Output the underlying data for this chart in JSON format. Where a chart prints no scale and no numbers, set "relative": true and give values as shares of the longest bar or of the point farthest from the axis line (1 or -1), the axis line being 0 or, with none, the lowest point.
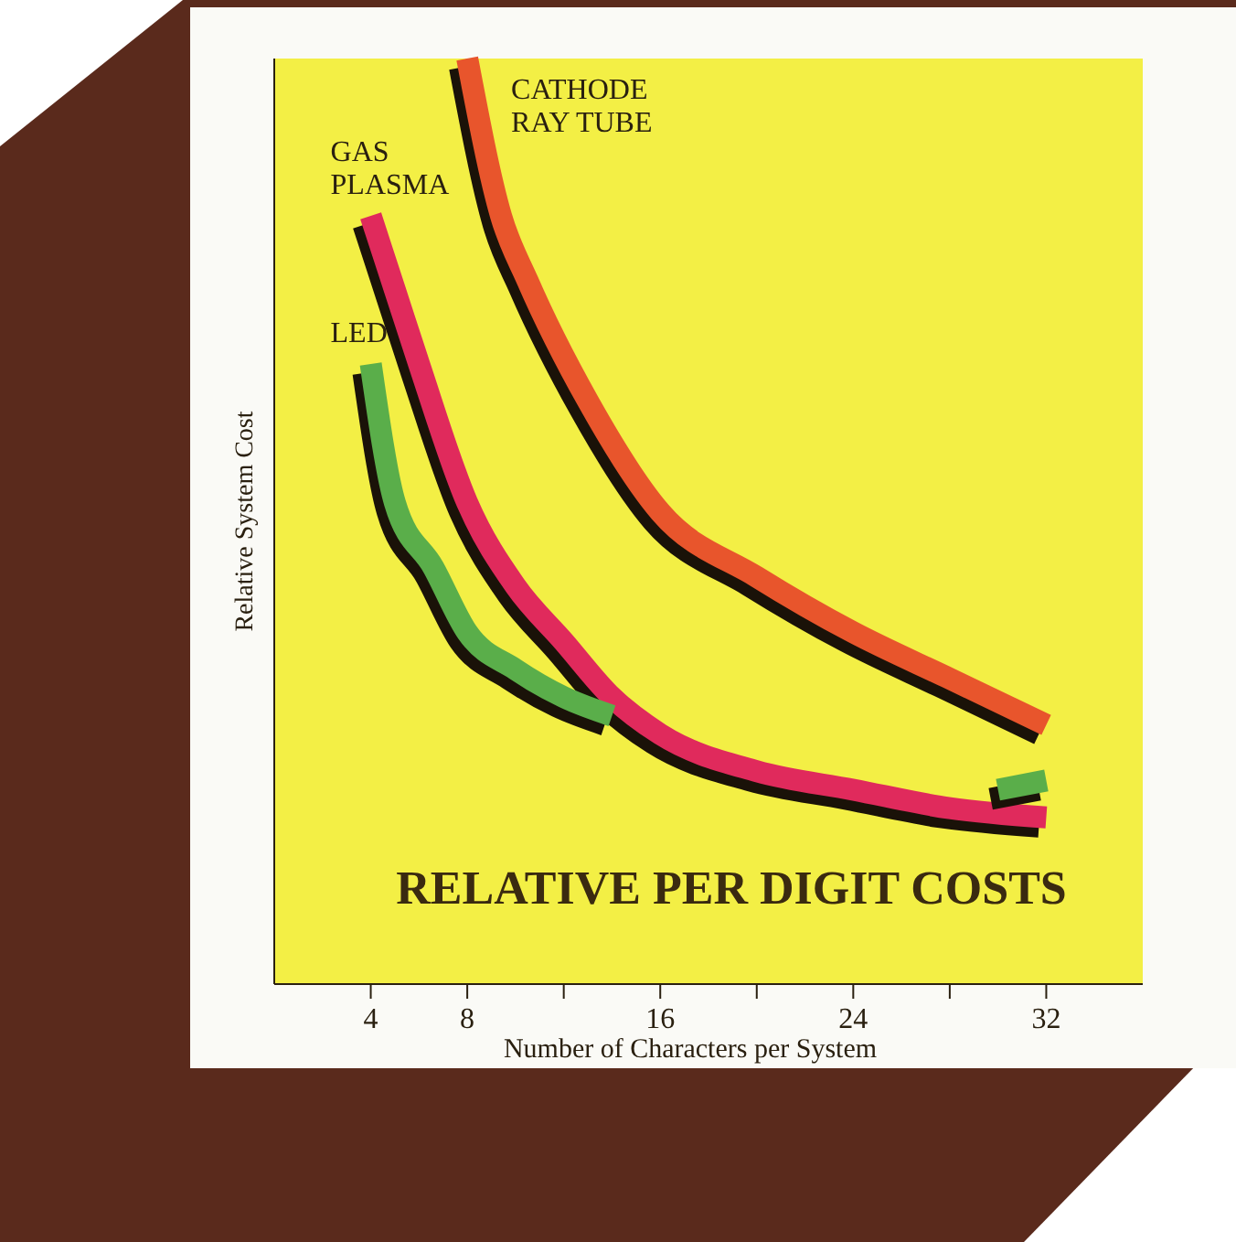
{
  "chart_data": {
    "type": "line",
    "title": "RELATIVE PER DIGIT COSTS",
    "xlabel": "Number of Characters per System",
    "ylabel": "Relative System Cost",
    "relative": true,
    "xlim": [
      0,
      36
    ],
    "xticks": [
      4,
      8,
      {
        "value": 12,
        "label": null
      },
      16,
      {
        "value": 20,
        "label": null
      },
      24,
      {
        "value": 28,
        "label": null
      },
      32
    ],
    "series": [
      {
        "name": "CATHODE\nRAY TUBE",
        "color": "#e8552c",
        "x": [
          8,
          9.4,
          10.5,
          13,
          16,
          20,
          24,
          28,
          32
        ],
        "values": [
          1.0,
          0.83,
          0.76,
          0.63,
          0.51,
          0.44,
          0.38,
          0.33,
          0.28
        ]
      },
      {
        "name": "GAS\nPLASMA",
        "color": "#e02a5c",
        "x": [
          4,
          5,
          6,
          8,
          10,
          12,
          14,
          16,
          20,
          24,
          28,
          32
        ],
        "values": [
          0.83,
          0.75,
          0.67,
          0.52,
          0.43,
          0.37,
          0.31,
          0.27,
          0.23,
          0.21,
          0.19,
          0.18
        ]
      },
      {
        "name": "LED",
        "color": "#5aae4a",
        "x": [
          4,
          5,
          6.6,
          8,
          10,
          12,
          14,
          16,
          30,
          32
        ],
        "values": [
          0.67,
          0.52,
          0.45,
          0.38,
          0.34,
          0.31,
          0.29,
          null,
          0.21,
          0.22
        ]
      }
    ],
    "grid": false,
    "line_style": "solid",
    "marker": "none"
  }
}
